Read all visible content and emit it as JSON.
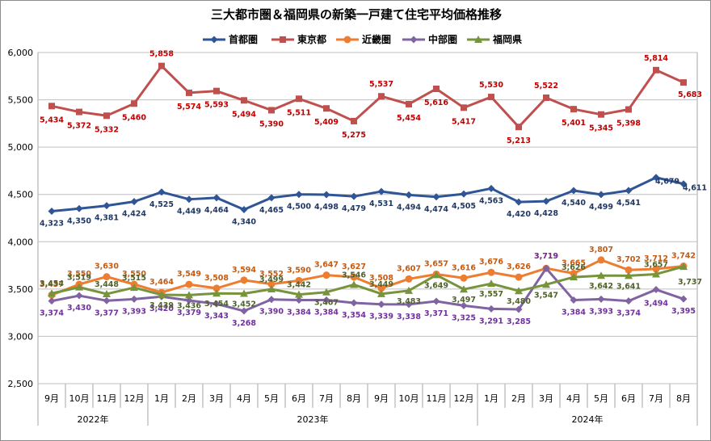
{
  "chart_data": {
    "type": "line",
    "title": "三大都市圏＆福岡県の新築一戸建て住宅平均価格推移",
    "categories": [
      "9月",
      "10月",
      "11月",
      "12月",
      "1月",
      "2月",
      "3月",
      "4月",
      "5月",
      "6月",
      "7月",
      "8月",
      "9月",
      "10月",
      "11月",
      "12月",
      "1月",
      "2月",
      "3月",
      "4月",
      "5月",
      "6月",
      "7月",
      "8月"
    ],
    "year_groups": [
      {
        "label": "2022年",
        "start": 0,
        "end": 3
      },
      {
        "label": "2023年",
        "start": 4,
        "end": 15
      },
      {
        "label": "2024年",
        "start": 16,
        "end": 23
      }
    ],
    "ylim": [
      2500,
      6000
    ],
    "yticks": [
      "2,500",
      "3,000",
      "3,500",
      "4,000",
      "4,500",
      "5,000",
      "5,500",
      "6,000"
    ],
    "grid": true,
    "legend_position": "top",
    "series": [
      {
        "name": "首都圏",
        "color": "#2f5597",
        "labelColor": "#1f3864",
        "marker": "diamond",
        "labelPos": "below",
        "values": [
          4323,
          4350,
          4381,
          4424,
          4525,
          4449,
          4464,
          4340,
          4465,
          4500,
          4498,
          4479,
          4531,
          4494,
          4474,
          4505,
          4563,
          4420,
          4428,
          4540,
          4499,
          4541,
          4679,
          4611
        ],
        "labels": [
          "4,323",
          "4,350",
          "4,381",
          "4,424",
          "4,525",
          "4,449",
          "4,464",
          "4,340",
          "4,465",
          "4,500",
          "4,498",
          "4,479",
          "4,531",
          "4,494",
          "4,474",
          "4,505",
          "4,563",
          "4,420",
          "4,428",
          "4,540",
          "4,499",
          "4,541",
          "4,679",
          "4,611"
        ]
      },
      {
        "name": "東京都",
        "color": "#c0504d",
        "labelColor": "#c00000",
        "marker": "square",
        "labelPos": "custom",
        "values": [
          5434,
          5372,
          5332,
          5460,
          5858,
          5574,
          5593,
          5494,
          5390,
          5511,
          5409,
          5275,
          5537,
          5454,
          5616,
          5417,
          5530,
          5213,
          5522,
          5401,
          5345,
          5398,
          5814,
          5683
        ],
        "labels": [
          "5,434",
          "5,372",
          "5,332",
          "5,460",
          "5,858",
          "5,574",
          "5,593",
          "5,494",
          "5,390",
          "5,511",
          "5,409",
          "5,275",
          "5,537",
          "5,454",
          "5,616",
          "5,417",
          "5,530",
          "5,213",
          "5,522",
          "5,401",
          "5,345",
          "5,398",
          "5,814",
          "5,683"
        ]
      },
      {
        "name": "近畿圏",
        "color": "#ed7d31",
        "labelColor": "#c55a11",
        "marker": "circle",
        "labelPos": "above",
        "values": [
          3437,
          3550,
          3630,
          3550,
          3464,
          3549,
          3508,
          3594,
          3552,
          3590,
          3647,
          3627,
          3508,
          3607,
          3657,
          3616,
          3676,
          3626,
          3719,
          3665,
          3807,
          3702,
          3712,
          3742
        ],
        "labels": [
          "3,437",
          "3,550",
          "3,630",
          "3,550",
          "3,464",
          "3,549",
          "3,508",
          "3,594",
          "3,552",
          "3,590",
          "3,647",
          "3,627",
          "3,508",
          "3,607",
          "3,657",
          "3,616",
          "3,676",
          "3,626",
          "3,719",
          "3,665",
          "3,807",
          "3,702",
          "3,712",
          "3,742"
        ]
      },
      {
        "name": "中部圏",
        "color": "#8064a2",
        "labelColor": "#7030a0",
        "marker": "diamond",
        "labelPos": "below",
        "values": [
          3374,
          3430,
          3377,
          3393,
          3420,
          3379,
          3343,
          3268,
          3390,
          3384,
          3384,
          3354,
          3339,
          3338,
          3371,
          3325,
          3291,
          3285,
          3719,
          3384,
          3393,
          3374,
          3494,
          3395
        ],
        "labels": [
          "3,374",
          "3,430",
          "3,377",
          "3,393",
          "3,420",
          "3,379",
          "3,343",
          "3,268",
          "3,390",
          "3,384",
          "3,384",
          "3,354",
          "3,339",
          "3,338",
          "3,371",
          "3,325",
          "3,291",
          "3,285",
          "3,719",
          "3,384",
          "3,393",
          "3,374",
          "3,494",
          "3,395"
        ]
      },
      {
        "name": "福岡県",
        "color": "#77933c",
        "labelColor": "#4f6228",
        "marker": "triangle",
        "labelPos": "custom",
        "values": [
          3454,
          3519,
          3448,
          3515,
          3439,
          3436,
          3454,
          3452,
          3499,
          3442,
          3467,
          3546,
          3449,
          3483,
          3649,
          3497,
          3557,
          3480,
          3547,
          3626,
          3642,
          3641,
          3657,
          3737
        ],
        "labels": [
          "3,454",
          "3,519",
          "3,448",
          "3,515",
          "3,439",
          "3,436",
          "3,454",
          "3,452",
          "3,499",
          "3,442",
          "3,467",
          "3,546",
          "3,449",
          "3,483",
          "3,649",
          "3,497",
          "3,557",
          "3,480",
          "3,547",
          "3,626",
          "3,642",
          "3,641",
          "3,657",
          "3,737"
        ]
      }
    ]
  }
}
